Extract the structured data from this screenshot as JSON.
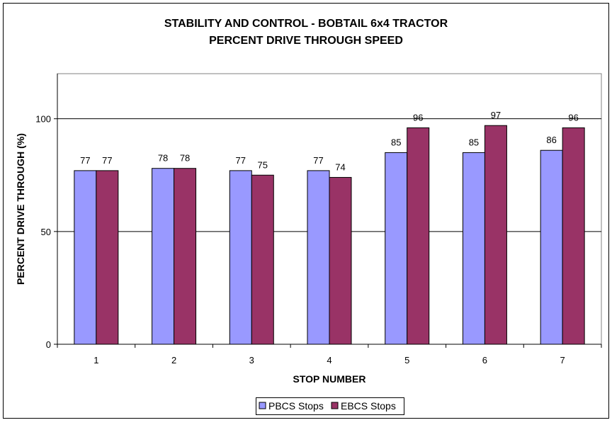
{
  "chart_data": {
    "type": "bar",
    "title": "STABILITY AND CONTROL - BOBTAIL 6x4 TRACTOR",
    "subtitle": "PERCENT DRIVE THROUGH SPEED",
    "xlabel": "STOP NUMBER",
    "ylabel": "PERCENT DRIVE THROUGH (%)",
    "categories": [
      "1",
      "2",
      "3",
      "4",
      "5",
      "6",
      "7"
    ],
    "series": [
      {
        "name": "PBCS Stops",
        "color": "#9999FF",
        "values": [
          77,
          78,
          77,
          77,
          85,
          85,
          86
        ]
      },
      {
        "name": "EBCS Stops",
        "color": "#993366",
        "values": [
          77,
          78,
          75,
          74,
          96,
          97,
          96
        ]
      }
    ],
    "ylim": [
      0,
      120
    ],
    "yticks": [
      0,
      50,
      100
    ],
    "grid": true,
    "legend_position": "bottom",
    "plot_background": "#FFFFFF",
    "gridline_color": "#000000"
  }
}
